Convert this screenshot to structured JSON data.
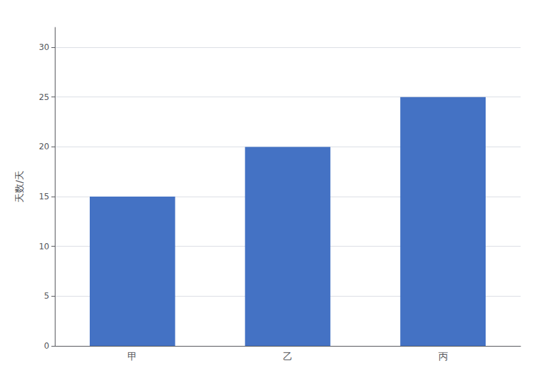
{
  "chart_data": {
    "type": "bar",
    "y_label": "天数/天",
    "categories": [
      "甲",
      "乙",
      "丙"
    ],
    "values": [
      15,
      20,
      25
    ],
    "color": "#4472C4",
    "ylim": [
      0,
      32
    ],
    "yticks": [
      0,
      5,
      10,
      15,
      20,
      25,
      30
    ],
    "grid": true
  }
}
